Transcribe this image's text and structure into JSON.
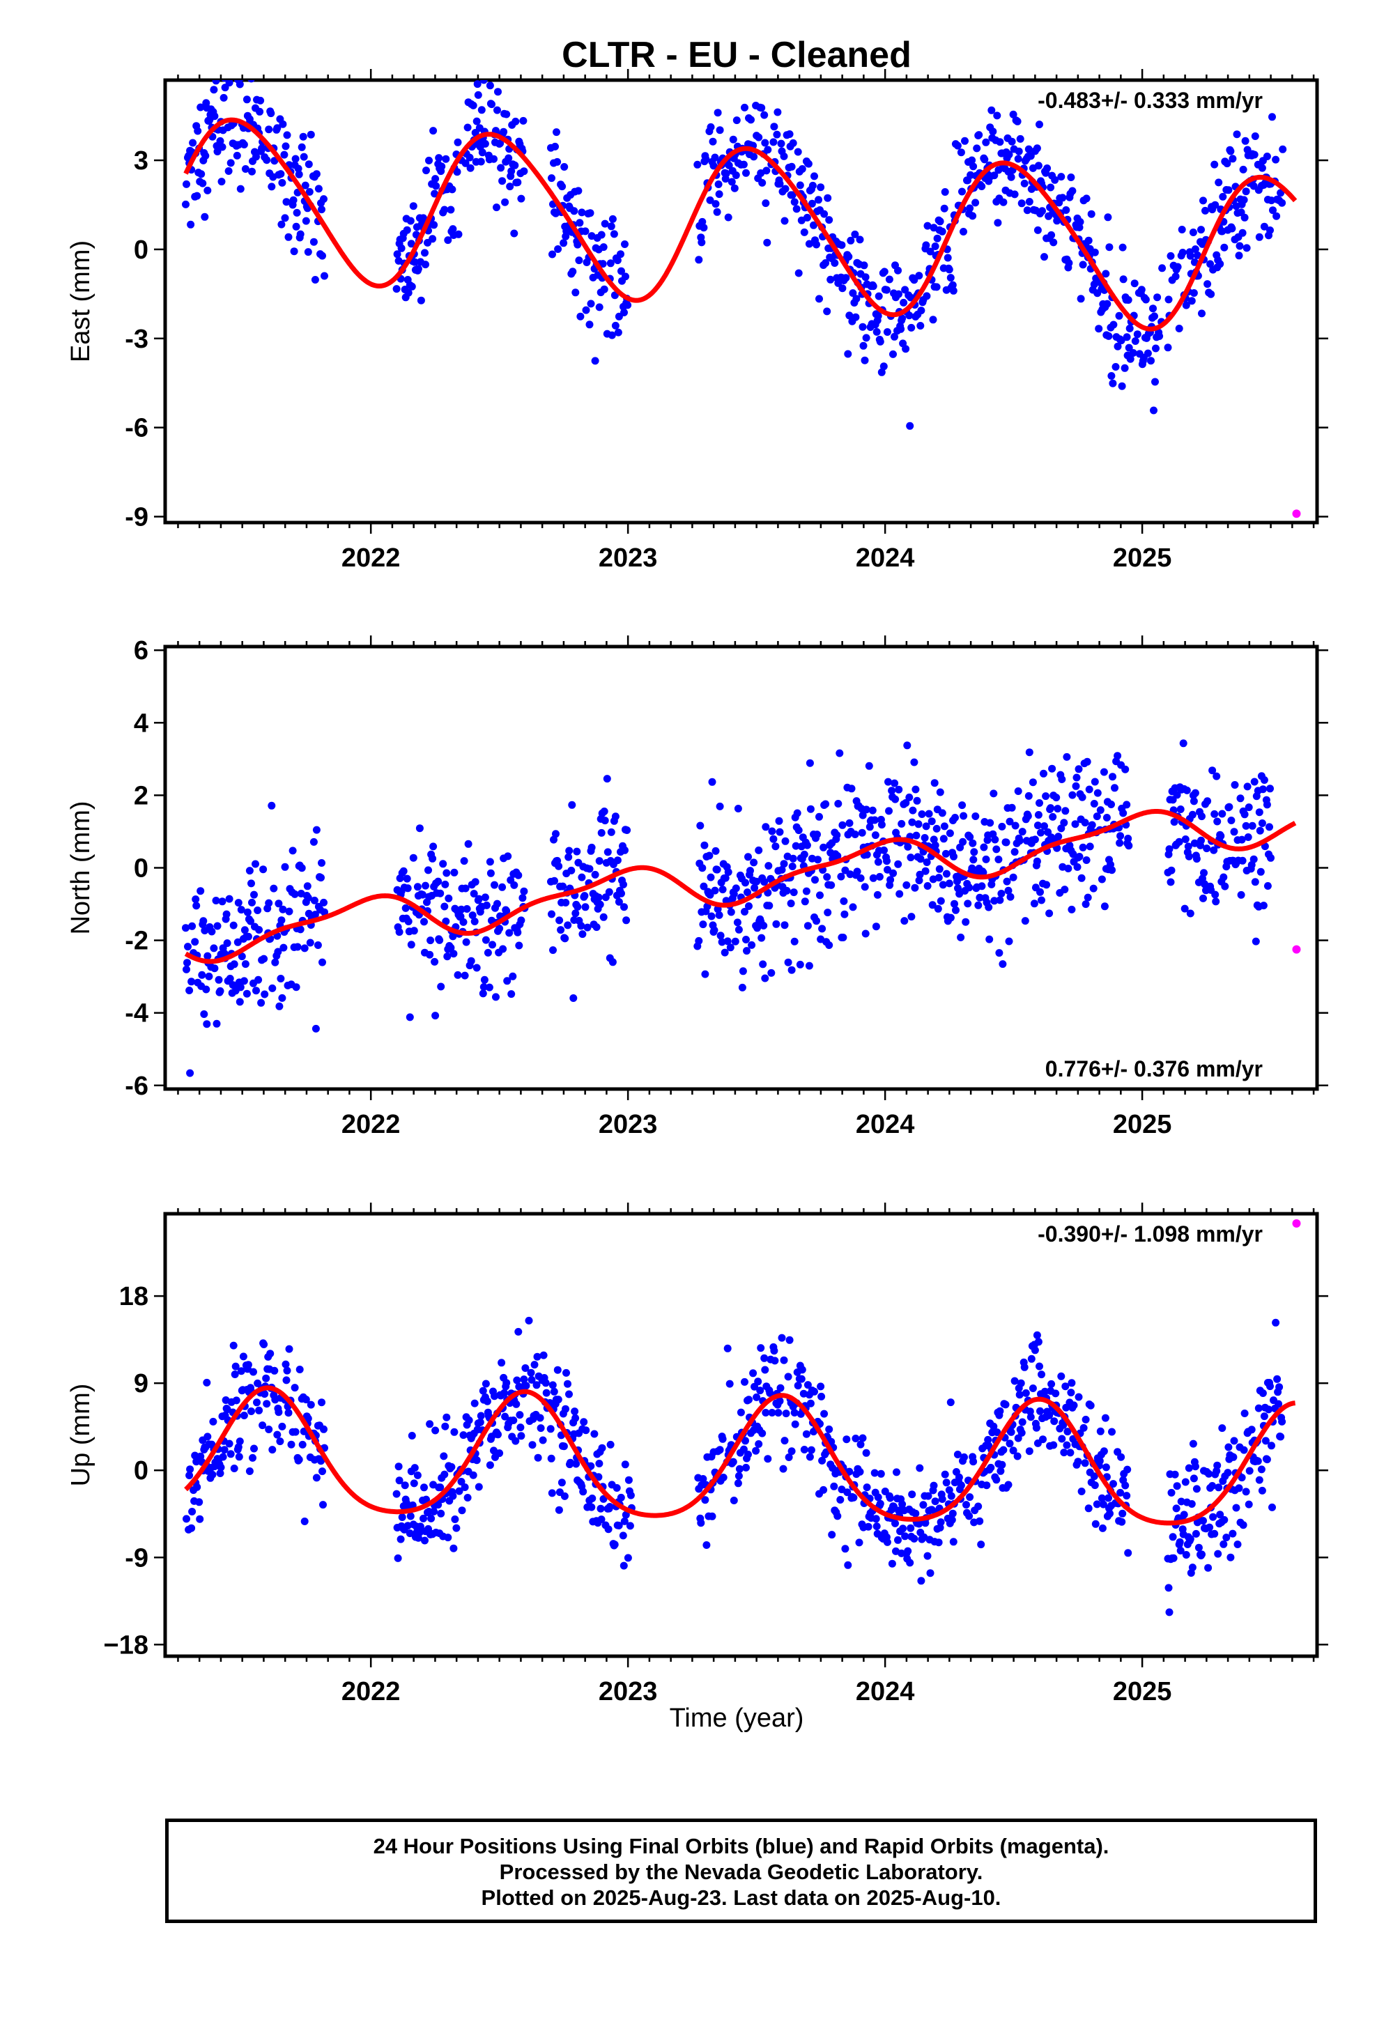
{
  "title": "CLTR  - EU - Cleaned",
  "xlabel": "Time (year)",
  "footer": [
    "24 Hour Positions Using Final Orbits (blue) and Rapid Orbits (magenta).",
    "Processed by the Nevada Geodetic Laboratory.",
    "Plotted on 2025-Aug-23. Last data on 2025-Aug-10."
  ],
  "colors": {
    "final_orbits": "#0000ff",
    "rapid_orbits": "#ff00ff",
    "model_fit": "#ff0000",
    "axes": "#000000"
  },
  "chart_data": [
    {
      "type": "scatter",
      "ylabel": "East (mm)",
      "rate": "-0.483+/- 0.333 mm/yr",
      "rate_placement": "top-right",
      "xlim": [
        2021.2,
        2025.68
      ],
      "ylim": [
        -9.2,
        5.7
      ],
      "xticks": [
        2022,
        2023,
        2024,
        2025
      ],
      "yticks": [
        -9,
        -6,
        -3,
        0,
        3
      ],
      "ytick_labels": [
        "-9",
        "-6",
        "-3",
        "0",
        "3"
      ],
      "model": {
        "offset": 0.83,
        "trend": -0.483,
        "t0": 2023.44,
        "annual_amp": 2.6,
        "annual_peak": 0.5,
        "semiannual_amp": 0.3,
        "semiannual_peak": 0.35
      },
      "data_segments": [
        [
          2021.28,
          2021.82
        ],
        [
          2022.1,
          2022.6
        ],
        [
          2022.7,
          2023.0
        ],
        [
          2023.27,
          2023.85
        ],
        [
          2023.85,
          2024.4
        ],
        [
          2024.4,
          2024.82
        ],
        [
          2024.82,
          2025.08
        ],
        [
          2025.1,
          2025.55
        ]
      ],
      "noise_sd": 1.0,
      "rapid_points": [
        {
          "x": 2025.6,
          "y": -8.9
        }
      ]
    },
    {
      "type": "scatter",
      "ylabel": "North (mm)",
      "rate": "0.776+/- 0.376 mm/yr",
      "rate_placement": "bottom-right",
      "xlim": [
        2021.2,
        2025.68
      ],
      "ylim": [
        -6.1,
        6.1
      ],
      "xticks": [
        2022,
        2023,
        2024,
        2025
      ],
      "yticks": [
        -6,
        -4,
        -2,
        0,
        2,
        4,
        6
      ],
      "ytick_labels": [
        "-6",
        "-4",
        "-2",
        "0",
        "2",
        "4",
        "6"
      ],
      "model": {
        "offset": -0.3,
        "trend": 0.776,
        "t0": 2023.44,
        "annual_amp": 0.55,
        "annual_peak": 0.95,
        "semiannual_amp": 0.2,
        "semiannual_peak": 0.1
      },
      "data_segments": [
        [
          2021.28,
          2021.82
        ],
        [
          2022.1,
          2022.6
        ],
        [
          2022.7,
          2023.0
        ],
        [
          2023.27,
          2024.4
        ],
        [
          2024.4,
          2024.95
        ],
        [
          2025.1,
          2025.5
        ]
      ],
      "noise_sd": 1.0,
      "rapid_points": [
        {
          "x": 2025.6,
          "y": -2.25
        }
      ]
    },
    {
      "type": "scatter",
      "ylabel": "Up (mm)",
      "rate": "-0.390+/- 1.098 mm/yr",
      "rate_placement": "top-right",
      "xlim": [
        2021.2,
        2025.68
      ],
      "ylim": [
        -19.2,
        26.5
      ],
      "xticks": [
        2022,
        2023,
        2024,
        2025
      ],
      "yticks": [
        -18,
        -9,
        0,
        9,
        18
      ],
      "ytick_labels": [
        "−18",
        "-9",
        "0",
        "9",
        "18"
      ],
      "model": {
        "offset": 0.5,
        "trend": -0.39,
        "t0": 2023.44,
        "annual_amp": 6.3,
        "annual_peak": 0.6,
        "semiannual_amp": 1.0,
        "semiannual_peak": 0.1
      },
      "data_segments": [
        [
          2021.28,
          2021.82
        ],
        [
          2022.1,
          2022.62
        ],
        [
          2022.62,
          2023.02
        ],
        [
          2023.27,
          2023.85
        ],
        [
          2023.85,
          2024.4
        ],
        [
          2024.4,
          2024.95
        ],
        [
          2025.1,
          2025.55
        ]
      ],
      "noise_sd": 3.0,
      "rapid_points": [
        {
          "x": 2025.6,
          "y": 25.5
        }
      ]
    }
  ]
}
